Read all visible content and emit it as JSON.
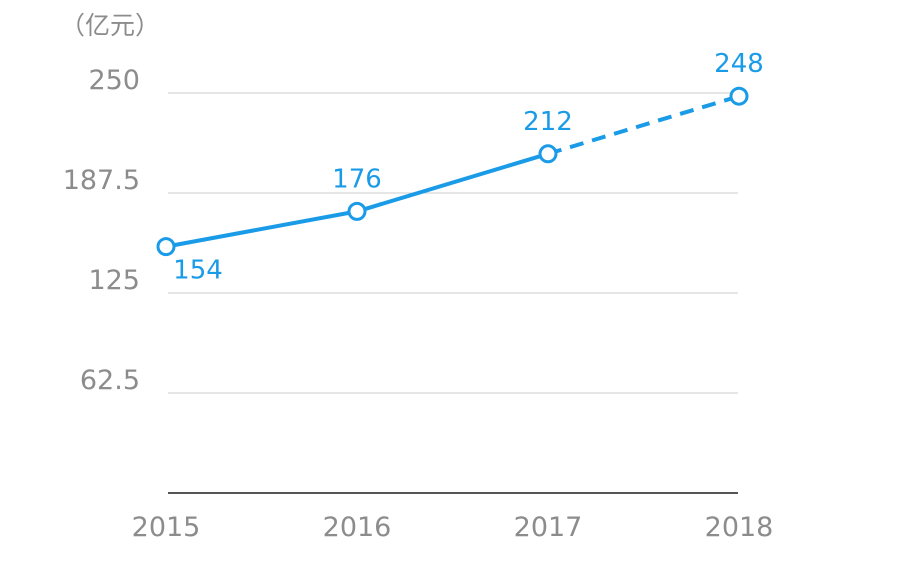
{
  "chart_data": {
    "type": "line",
    "unit_label": "（亿元）",
    "categories": [
      "2015",
      "2016",
      "2017",
      "2018"
    ],
    "series": [
      {
        "values": [
          154,
          176,
          212,
          248
        ],
        "data_labels": [
          "154",
          "176",
          "212",
          "248"
        ],
        "projected_from_index": 2
      }
    ],
    "yticks": [
      62.5,
      125,
      187.5,
      250
    ],
    "ytick_labels": [
      "62.5",
      "125",
      "187.5",
      "250"
    ],
    "ylim": [
      0,
      250
    ],
    "grid": true,
    "colors": {
      "series": "#1a9be8",
      "grid": "#cccccc",
      "axis": "#555555",
      "tick_text": "#8c8c8c"
    }
  }
}
